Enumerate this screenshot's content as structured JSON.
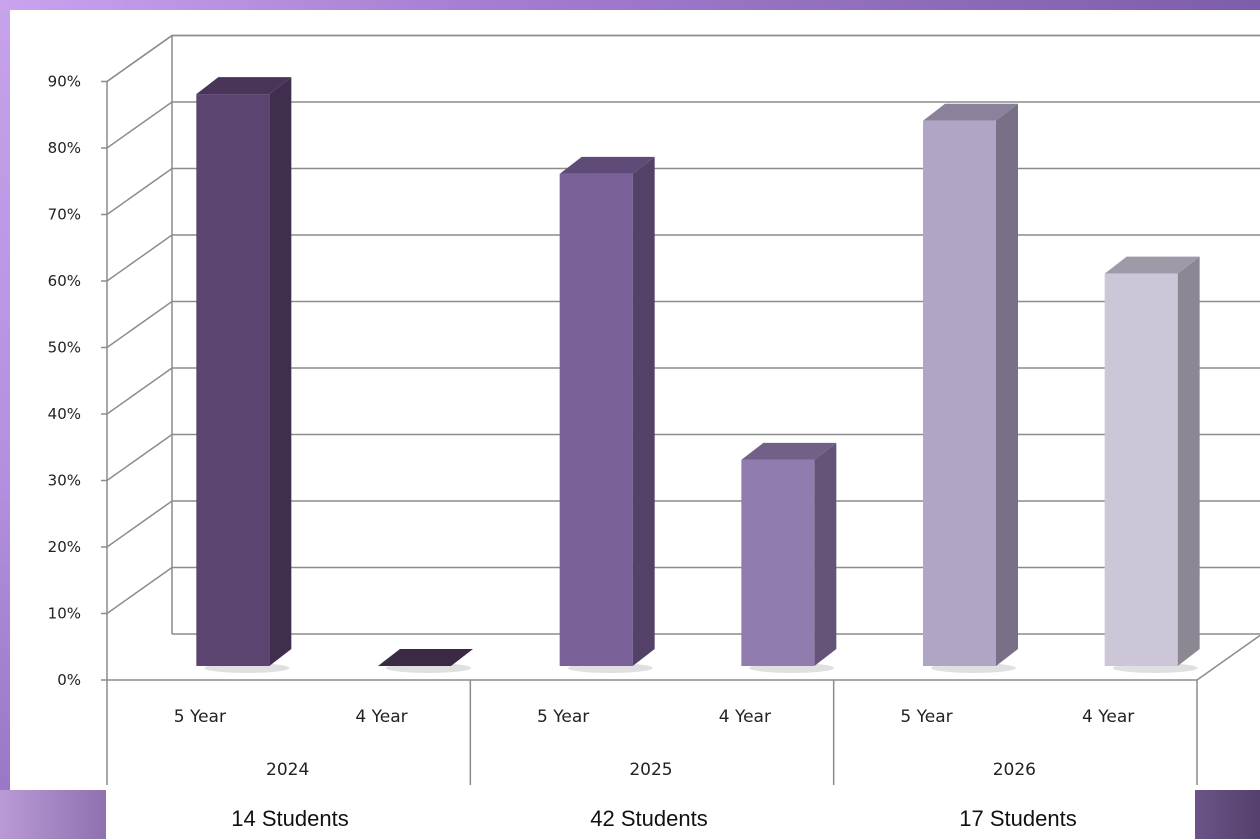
{
  "chart_data": {
    "type": "bar",
    "groups": [
      {
        "label": "2024",
        "categories": [
          "5 Year",
          "4 Year"
        ],
        "values": [
          86,
          0
        ],
        "colors": [
          "#5c4471",
          "#4a3659"
        ],
        "students": "14 Students"
      },
      {
        "label": "2025",
        "categories": [
          "5 Year",
          "4 Year"
        ],
        "values": [
          74,
          31
        ],
        "colors": [
          "#7a6098",
          "#917cb0"
        ],
        "students": "42 Students"
      },
      {
        "label": "2026",
        "categories": [
          "5 Year",
          "4 Year"
        ],
        "values": [
          82,
          59
        ],
        "colors": [
          "#b1a5c5",
          "#cdc6d8"
        ],
        "students": "17 Students"
      }
    ],
    "yticks": [
      "0%",
      "10%",
      "20%",
      "30%",
      "40%",
      "50%",
      "60%",
      "70%",
      "80%",
      "90%"
    ],
    "ylim": [
      0,
      90
    ],
    "grid": true,
    "title": "",
    "xlabel": "",
    "ylabel": ""
  }
}
